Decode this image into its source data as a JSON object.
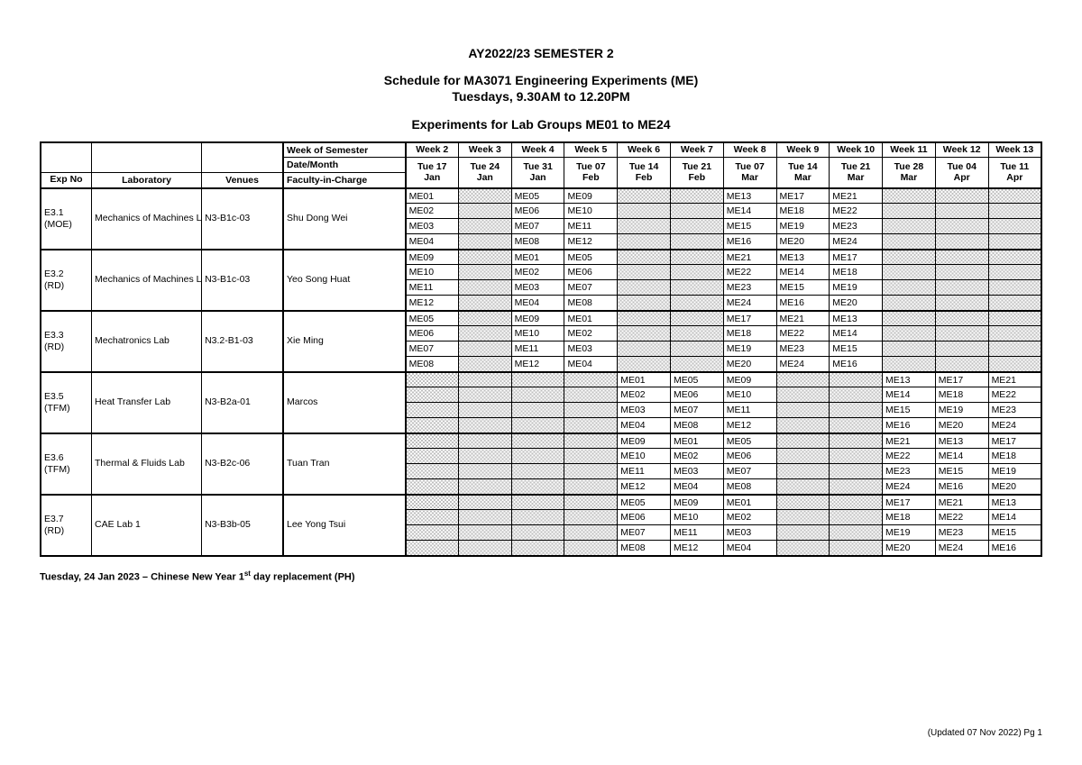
{
  "title_line1": "AY2022/23 SEMESTER 2",
  "title_line2": "Schedule for MA3071 Engineering Experiments (ME)",
  "title_line3": "Tuesdays, 9.30AM to 12.20PM",
  "title_line4": "Experiments for Lab Groups ME01 to ME24",
  "header": {
    "week_of_semester": "Week of Semester",
    "date_month": "Date/Month",
    "fic": "Faculty-in-Charge",
    "exp_no": "Exp No",
    "laboratory": "Laboratory",
    "venues": "Venues"
  },
  "weeks": [
    {
      "w": "Week 2",
      "d": "Tue 17 Jan"
    },
    {
      "w": "Week 3",
      "d": "Tue 24 Jan"
    },
    {
      "w": "Week 4",
      "d": "Tue 31 Jan"
    },
    {
      "w": "Week 5",
      "d": "Tue 07 Feb"
    },
    {
      "w": "Week 6",
      "d": "Tue 14 Feb"
    },
    {
      "w": "Week 7",
      "d": "Tue 21 Feb"
    },
    {
      "w": "Week 8",
      "d": "Tue 07 Mar"
    },
    {
      "w": "Week 9",
      "d": "Tue 14 Mar"
    },
    {
      "w": "Week 10",
      "d": "Tue 21 Mar"
    },
    {
      "w": "Week 11",
      "d": "Tue 28 Mar"
    },
    {
      "w": "Week 12",
      "d": "Tue 04 Apr"
    },
    {
      "w": "Week 13",
      "d": "Tue 11 Apr"
    }
  ],
  "groups": [
    {
      "exp": "E3.1 (MOE)",
      "lab": "Mechanics of Machines Lab",
      "venue": "N3-B1c-03",
      "fic": "Shu Dong Wei",
      "rows": [
        [
          "ME01",
          "",
          "ME05",
          "ME09",
          "",
          "",
          "ME13",
          "ME17",
          "ME21",
          "",
          "",
          ""
        ],
        [
          "ME02",
          "",
          "ME06",
          "ME10",
          "",
          "",
          "ME14",
          "ME18",
          "ME22",
          "",
          "",
          ""
        ],
        [
          "ME03",
          "",
          "ME07",
          "ME11",
          "",
          "",
          "ME15",
          "ME19",
          "ME23",
          "",
          "",
          ""
        ],
        [
          "ME04",
          "",
          "ME08",
          "ME12",
          "",
          "",
          "ME16",
          "ME20",
          "ME24",
          "",
          "",
          ""
        ]
      ]
    },
    {
      "exp": "E3.2 (RD)",
      "lab": "Mechanics of Machines Lab",
      "venue": "N3-B1c-03",
      "fic": "Yeo Song Huat",
      "rows": [
        [
          "ME09",
          "",
          "ME01",
          "ME05",
          "",
          "",
          "ME21",
          "ME13",
          "ME17",
          "",
          "",
          ""
        ],
        [
          "ME10",
          "",
          "ME02",
          "ME06",
          "",
          "",
          "ME22",
          "ME14",
          "ME18",
          "",
          "",
          ""
        ],
        [
          "ME11",
          "",
          "ME03",
          "ME07",
          "",
          "",
          "ME23",
          "ME15",
          "ME19",
          "",
          "",
          ""
        ],
        [
          "ME12",
          "",
          "ME04",
          "ME08",
          "",
          "",
          "ME24",
          "ME16",
          "ME20",
          "",
          "",
          ""
        ]
      ]
    },
    {
      "exp": "E3.3 (RD)",
      "lab": "Mechatronics Lab",
      "venue": "N3.2-B1-03",
      "fic": "Xie Ming",
      "rows": [
        [
          "ME05",
          "",
          "ME09",
          "ME01",
          "",
          "",
          "ME17",
          "ME21",
          "ME13",
          "",
          "",
          ""
        ],
        [
          "ME06",
          "",
          "ME10",
          "ME02",
          "",
          "",
          "ME18",
          "ME22",
          "ME14",
          "",
          "",
          ""
        ],
        [
          "ME07",
          "",
          "ME11",
          "ME03",
          "",
          "",
          "ME19",
          "ME23",
          "ME15",
          "",
          "",
          ""
        ],
        [
          "ME08",
          "",
          "ME12",
          "ME04",
          "",
          "",
          "ME20",
          "ME24",
          "ME16",
          "",
          "",
          ""
        ]
      ]
    },
    {
      "exp": "E3.5 (TFM)",
      "lab": "Heat Transfer Lab",
      "venue": "N3-B2a-01",
      "fic": "Marcos",
      "rows": [
        [
          "",
          "",
          "",
          "",
          "ME01",
          "ME05",
          "ME09",
          "",
          "",
          "ME13",
          "ME17",
          "ME21"
        ],
        [
          "",
          "",
          "",
          "",
          "ME02",
          "ME06",
          "ME10",
          "",
          "",
          "ME14",
          "ME18",
          "ME22"
        ],
        [
          "",
          "",
          "",
          "",
          "ME03",
          "ME07",
          "ME11",
          "",
          "",
          "ME15",
          "ME19",
          "ME23"
        ],
        [
          "",
          "",
          "",
          "",
          "ME04",
          "ME08",
          "ME12",
          "",
          "",
          "ME16",
          "ME20",
          "ME24"
        ]
      ]
    },
    {
      "exp": "E3.6 (TFM)",
      "lab": "Thermal & Fluids Lab",
      "venue": "N3-B2c-06",
      "fic": "Tuan Tran",
      "rows": [
        [
          "",
          "",
          "",
          "",
          "ME09",
          "ME01",
          "ME05",
          "",
          "",
          "ME21",
          "ME13",
          "ME17"
        ],
        [
          "",
          "",
          "",
          "",
          "ME10",
          "ME02",
          "ME06",
          "",
          "",
          "ME22",
          "ME14",
          "ME18"
        ],
        [
          "",
          "",
          "",
          "",
          "ME11",
          "ME03",
          "ME07",
          "",
          "",
          "ME23",
          "ME15",
          "ME19"
        ],
        [
          "",
          "",
          "",
          "",
          "ME12",
          "ME04",
          "ME08",
          "",
          "",
          "ME24",
          "ME16",
          "ME20"
        ]
      ]
    },
    {
      "exp": "E3.7 (RD)",
      "lab": "CAE Lab 1",
      "venue": "N3-B3b-05",
      "fic": "Lee Yong Tsui",
      "rows": [
        [
          "",
          "",
          "",
          "",
          "ME05",
          "ME09",
          "ME01",
          "",
          "",
          "ME17",
          "ME21",
          "ME13"
        ],
        [
          "",
          "",
          "",
          "",
          "ME06",
          "ME10",
          "ME02",
          "",
          "",
          "ME18",
          "ME22",
          "ME14"
        ],
        [
          "",
          "",
          "",
          "",
          "ME07",
          "ME11",
          "ME03",
          "",
          "",
          "ME19",
          "ME23",
          "ME15"
        ],
        [
          "",
          "",
          "",
          "",
          "ME08",
          "ME12",
          "ME04",
          "",
          "",
          "ME20",
          "ME24",
          "ME16"
        ]
      ]
    }
  ],
  "footnote_prefix": "Tuesday, 24 Jan 2023 – Chinese New Year 1",
  "footnote_sup": "st",
  "footnote_suffix": " day replacement (PH)",
  "footer": "(Updated 07 Nov 2022)  Pg 1",
  "style": {
    "page_bg": "#ffffff",
    "text_color": "#000000",
    "border_color": "#000000",
    "shade_pattern_fg": "#bfbfbf",
    "shade_pattern_bg": "#ffffff",
    "font_family": "Arial",
    "title_fontsize_pt": 11,
    "table_fontsize_pt": 8,
    "note_fontsize_pt": 8.5,
    "footer_fontsize_pt": 7.5
  }
}
